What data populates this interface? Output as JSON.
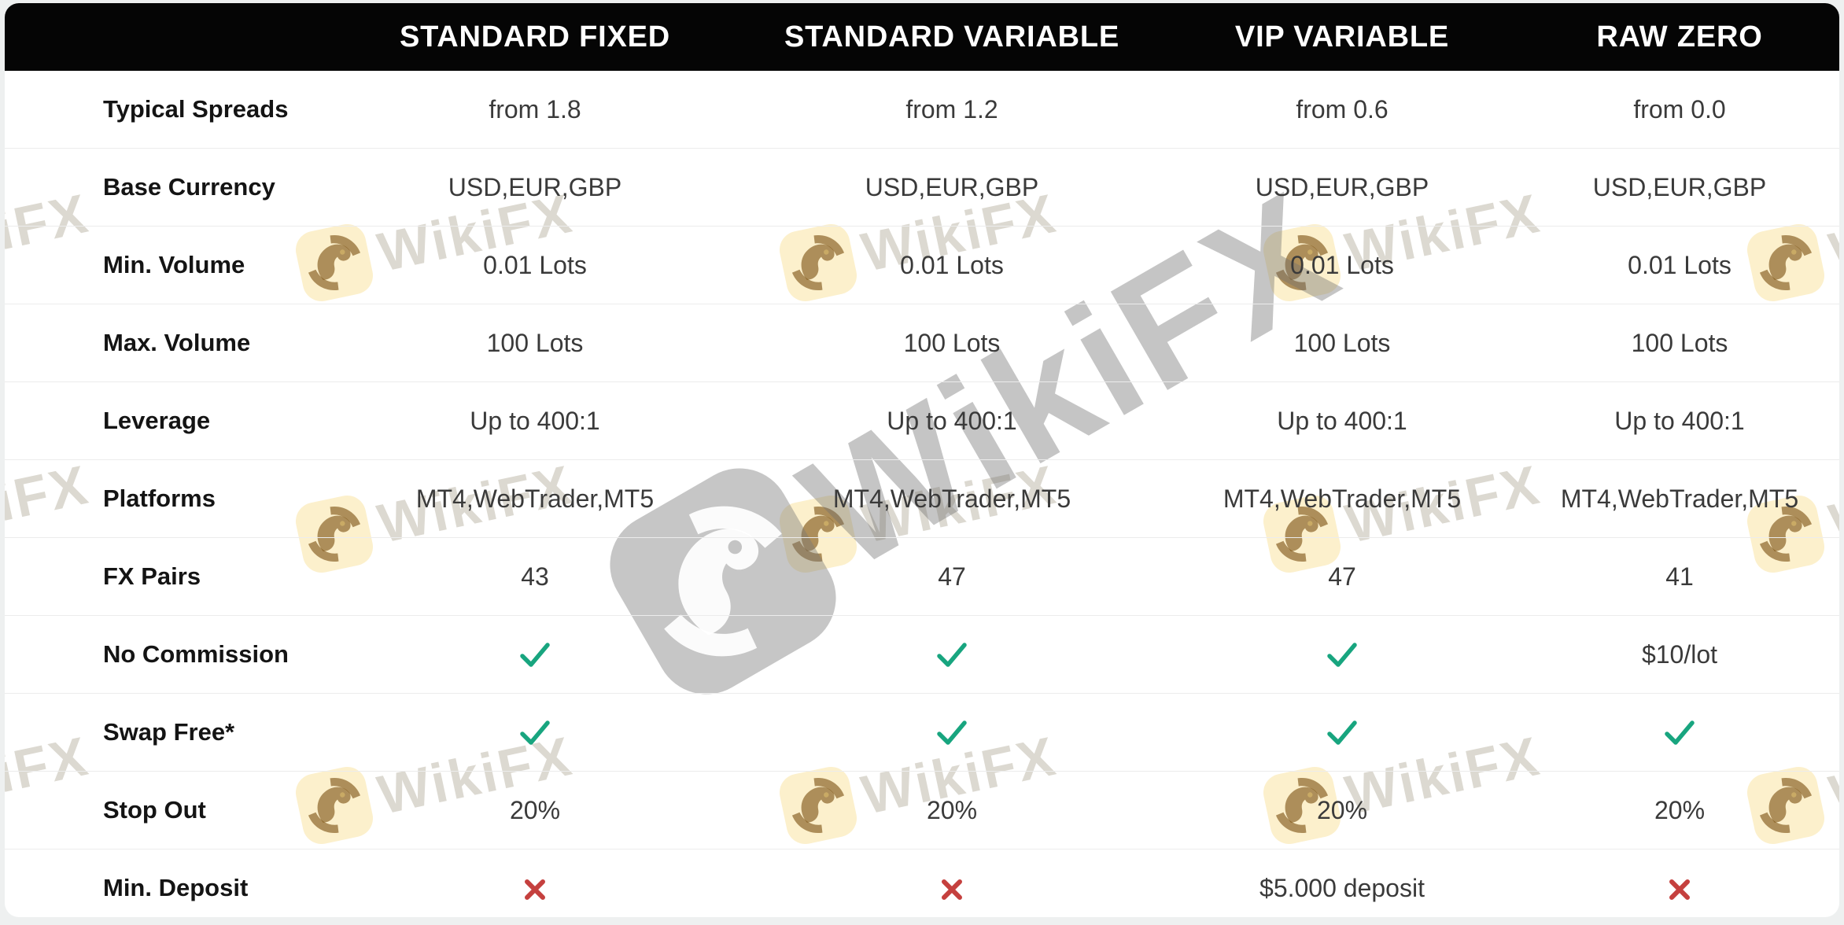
{
  "brand": {
    "watermark_text": "WikiFX"
  },
  "colors": {
    "page_bg": "#eef0f0",
    "card_bg": "#ffffff",
    "header_bg": "#050505",
    "header_text": "#ffffff",
    "check": "#18a57f",
    "cross": "#c5403e"
  },
  "table": {
    "columns": [
      "STANDARD FIXED",
      "STANDARD VARIABLE",
      "VIP VARIABLE",
      "RAW ZERO"
    ],
    "rows": [
      {
        "label": "Typical Spreads",
        "values": [
          "from 1.8",
          "from 1.2",
          "from 0.6",
          "from 0.0"
        ]
      },
      {
        "label": "Base Currency",
        "values": [
          "USD,EUR,GBP",
          "USD,EUR,GBP",
          "USD,EUR,GBP",
          "USD,EUR,GBP"
        ]
      },
      {
        "label": "Min. Volume",
        "values": [
          "0.01 Lots",
          "0.01 Lots",
          "0.01 Lots",
          "0.01 Lots"
        ]
      },
      {
        "label": "Max. Volume",
        "values": [
          "100 Lots",
          "100 Lots",
          "100 Lots",
          "100 Lots"
        ]
      },
      {
        "label": "Leverage",
        "values": [
          "Up to 400:1",
          "Up to 400:1",
          "Up to 400:1",
          "Up to 400:1"
        ]
      },
      {
        "label": "Platforms",
        "values": [
          "MT4,WebTrader,MT5",
          "MT4,WebTrader,MT5",
          "MT4,WebTrader,MT5",
          "MT4,WebTrader,MT5"
        ]
      },
      {
        "label": "FX Pairs",
        "values": [
          "43",
          "47",
          "47",
          "41"
        ]
      },
      {
        "label": "No Commission",
        "values": [
          "{check}",
          "{check}",
          "{check}",
          "$10/lot"
        ]
      },
      {
        "label": "Swap Free*",
        "values": [
          "{check}",
          "{check}",
          "{check}",
          "{check}"
        ]
      },
      {
        "label": "Stop Out",
        "values": [
          "20%",
          "20%",
          "20%",
          "20%"
        ]
      },
      {
        "label": "Min. Deposit",
        "values": [
          "{cross}",
          "{cross}",
          "$5.000 deposit",
          "{cross}"
        ]
      }
    ]
  }
}
